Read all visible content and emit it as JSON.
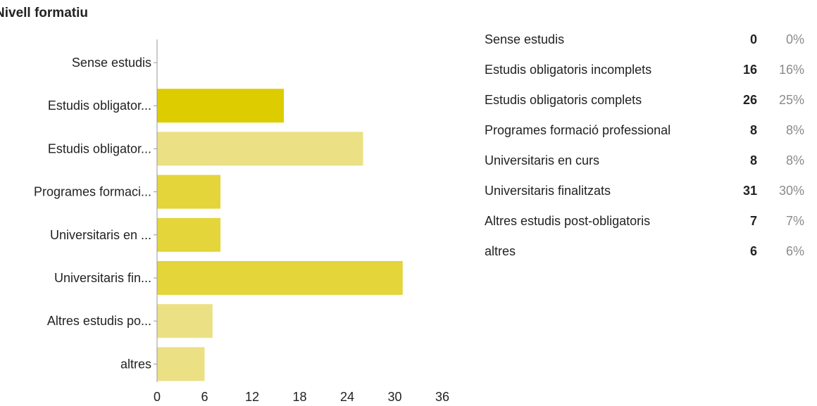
{
  "title": "Nivell formatiu",
  "colors": {
    "bar_dark": "#dccc00",
    "bar_mid": "#e3d53a",
    "bar_light": "#ebe084",
    "axis": "#999999",
    "text": "#222222",
    "pct_text": "#8a8a8a"
  },
  "chart_data": {
    "type": "bar",
    "orientation": "horizontal",
    "categories": [
      "Sense estudis",
      "Estudis obligator...",
      "Estudis obligator...",
      "Programes formaci...",
      "Universitaris en ...",
      "Universitaris fin...",
      "Altres estudis po...",
      "altres"
    ],
    "values": [
      0,
      16,
      26,
      8,
      8,
      31,
      7,
      6
    ],
    "bar_color_keys": [
      "bar_dark",
      "bar_dark",
      "bar_light",
      "bar_mid",
      "bar_mid",
      "bar_mid",
      "bar_light",
      "bar_light"
    ],
    "xlim": [
      0,
      36
    ],
    "xticks": [
      0,
      6,
      12,
      18,
      24,
      30,
      36
    ],
    "grid": false,
    "legend": "none"
  },
  "summary": [
    {
      "label": "Sense estudis",
      "count": "0",
      "pct": "0%"
    },
    {
      "label": "Estudis obligatoris incomplets",
      "count": "16",
      "pct": "16%"
    },
    {
      "label": "Estudis obligatoris complets",
      "count": "26",
      "pct": "25%"
    },
    {
      "label": "Programes formació professional",
      "count": "8",
      "pct": "8%"
    },
    {
      "label": "Universitaris en curs",
      "count": "8",
      "pct": "8%"
    },
    {
      "label": "Universitaris finalitzats",
      "count": "31",
      "pct": "30%"
    },
    {
      "label": "Altres estudis post-obligatoris",
      "count": "7",
      "pct": "7%"
    },
    {
      "label": "altres",
      "count": "6",
      "pct": "6%"
    }
  ]
}
